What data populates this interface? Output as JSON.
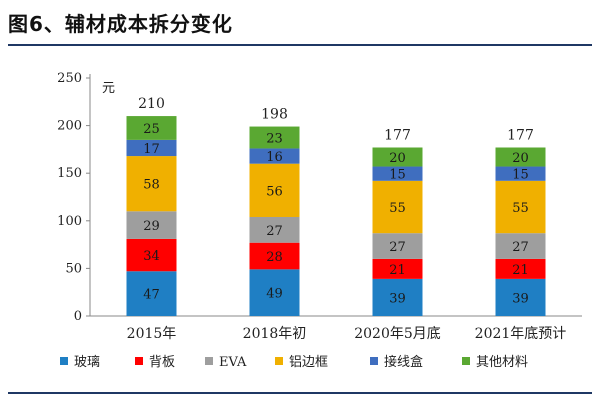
{
  "figure": {
    "title": "图6、辅材成本拆分变化"
  },
  "chart_data": {
    "type": "bar",
    "stacked": true,
    "title": "",
    "ylabel": "元",
    "xlabel": "",
    "ylim": [
      0,
      250
    ],
    "yticks": [
      0,
      50,
      100,
      150,
      200,
      250
    ],
    "grid": false,
    "legend_position": "bottom",
    "categories": [
      "2015年",
      "2018年初",
      "2020年5月底",
      "2021年底预计"
    ],
    "totals": [
      210,
      198,
      177,
      177
    ],
    "series": [
      {
        "name": "玻璃",
        "color": "#1f7fc4",
        "values": [
          47,
          49,
          39,
          39
        ]
      },
      {
        "name": "背板",
        "color": "#ff0000",
        "values": [
          34,
          28,
          21,
          21
        ]
      },
      {
        "name": "EVA",
        "color": "#9e9e9e",
        "values": [
          29,
          27,
          27,
          27
        ]
      },
      {
        "name": "铝边框",
        "color": "#f0b000",
        "values": [
          58,
          56,
          55,
          55
        ]
      },
      {
        "name": "接线盒",
        "color": "#3f6ebf",
        "values": [
          17,
          16,
          15,
          15
        ]
      },
      {
        "name": "其他材料",
        "color": "#5aa832",
        "values": [
          25,
          23,
          20,
          20
        ]
      }
    ]
  }
}
